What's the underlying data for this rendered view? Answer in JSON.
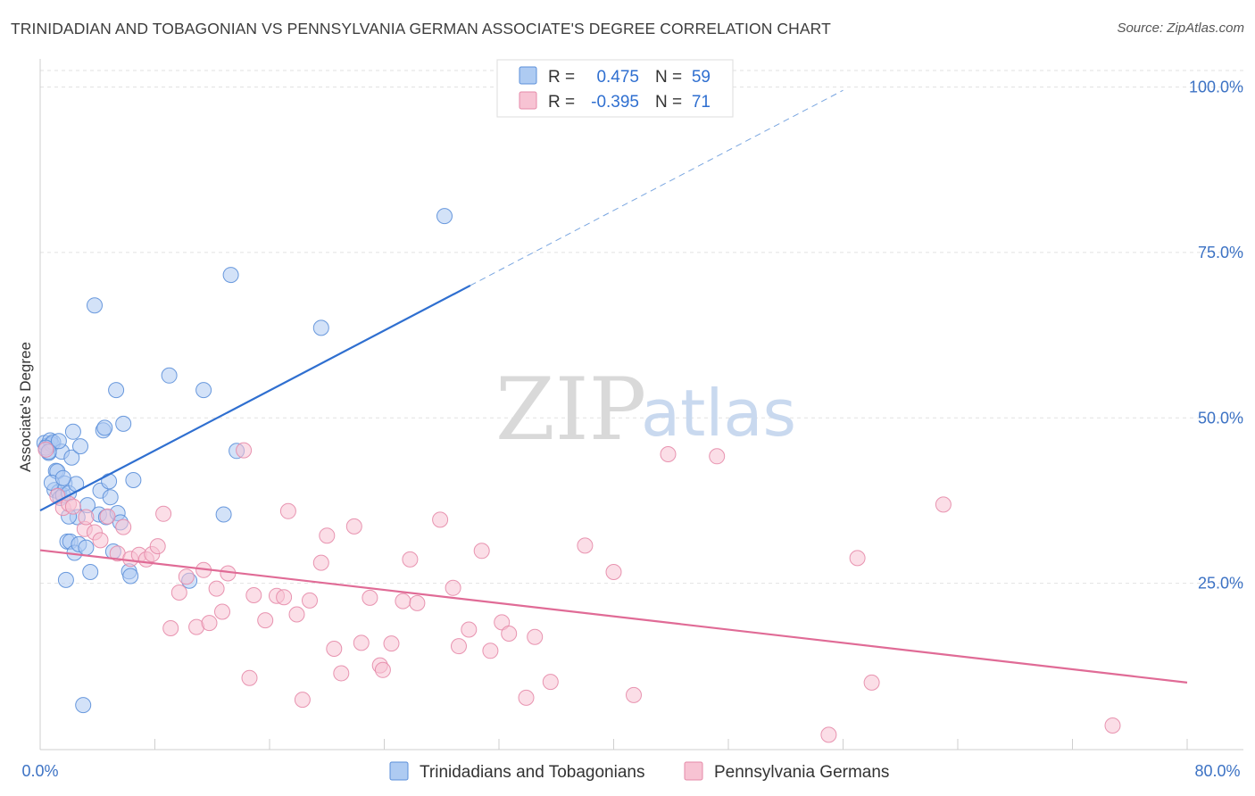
{
  "header": {
    "title": "TRINIDADIAN AND TOBAGONIAN VS PENNSYLVANIA GERMAN ASSOCIATE'S DEGREE CORRELATION CHART",
    "source": "Source: ZipAtlas.com"
  },
  "watermark": {
    "zip": "ZIP",
    "atlas": "atlas"
  },
  "legend": {
    "r_label": "R =",
    "n_label": "N =",
    "rows": [
      {
        "r": "0.475",
        "n": "59",
        "color": "#aecbf2",
        "stroke": "#5b8fd9"
      },
      {
        "r": "-0.395",
        "n": "71",
        "color": "#f7c3d3",
        "stroke": "#e58aa8"
      }
    ]
  },
  "chart_data": {
    "type": "scatter",
    "title": "TRINIDADIAN AND TOBAGONIAN VS PENNSYLVANIA GERMAN ASSOCIATE'S DEGREE CORRELATION CHART",
    "xlabel": "",
    "ylabel": "Associate's Degree",
    "xlim": [
      0,
      80
    ],
    "ylim": [
      0,
      100
    ],
    "x_tick_labels": [
      "0.0%",
      "80.0%"
    ],
    "y_ticks": [
      25,
      50,
      75,
      100
    ],
    "y_tick_labels": [
      "25.0%",
      "50.0%",
      "75.0%",
      "100.0%"
    ],
    "grid": "horizontal dashed",
    "legend_position": "top-center",
    "series": [
      {
        "name": "Trinidadians and Tobagonians",
        "color": "#aecbf2",
        "stroke": "#5b8fd9",
        "trend_color": "#2f6fd0",
        "trend": {
          "x0": 0,
          "y0": 36,
          "x1": 30,
          "y1": 70,
          "dash_to_x": 56,
          "dash_to_y": 99.5
        },
        "points": [
          [
            0.3,
            46.2
          ],
          [
            0.5,
            45.8
          ],
          [
            0.6,
            44.7
          ],
          [
            0.7,
            46.6
          ],
          [
            0.8,
            46.0
          ],
          [
            0.9,
            46.3
          ],
          [
            1.0,
            39.1
          ],
          [
            1.1,
            42.0
          ],
          [
            1.2,
            41.9
          ],
          [
            1.3,
            38.8
          ],
          [
            1.4,
            37.9
          ],
          [
            1.5,
            44.9
          ],
          [
            1.6,
            38.3
          ],
          [
            1.7,
            40.1
          ],
          [
            1.8,
            25.5
          ],
          [
            1.9,
            31.3
          ],
          [
            2.0,
            38.6
          ],
          [
            2.1,
            31.3
          ],
          [
            2.2,
            44.0
          ],
          [
            2.3,
            47.9
          ],
          [
            2.4,
            29.6
          ],
          [
            2.5,
            40.0
          ],
          [
            2.6,
            35.0
          ],
          [
            2.7,
            30.9
          ],
          [
            2.8,
            45.7
          ],
          [
            3.0,
            6.6
          ],
          [
            3.2,
            30.4
          ],
          [
            3.5,
            26.7
          ],
          [
            3.8,
            67.0
          ],
          [
            4.1,
            35.4
          ],
          [
            4.2,
            39.0
          ],
          [
            4.4,
            48.1
          ],
          [
            4.5,
            48.5
          ],
          [
            4.6,
            35.0
          ],
          [
            4.8,
            40.4
          ],
          [
            4.9,
            38.0
          ],
          [
            5.1,
            29.8
          ],
          [
            5.3,
            54.2
          ],
          [
            5.4,
            35.6
          ],
          [
            5.6,
            34.2
          ],
          [
            5.8,
            49.1
          ],
          [
            6.2,
            26.8
          ],
          [
            6.3,
            26.1
          ],
          [
            6.5,
            40.6
          ],
          [
            9.0,
            56.4
          ],
          [
            10.4,
            25.4
          ],
          [
            11.4,
            54.2
          ],
          [
            12.8,
            35.4
          ],
          [
            13.3,
            71.6
          ],
          [
            13.7,
            45.0
          ],
          [
            19.6,
            63.6
          ],
          [
            28.2,
            80.5
          ],
          [
            0.4,
            45.5
          ],
          [
            0.8,
            40.2
          ],
          [
            1.3,
            46.5
          ],
          [
            2.0,
            35.1
          ],
          [
            3.3,
            36.8
          ],
          [
            1.6,
            40.9
          ],
          [
            0.6,
            44.9
          ]
        ]
      },
      {
        "name": "Pennsylvania Germans",
        "color": "#f7c3d3",
        "stroke": "#e58aa8",
        "trend_color": "#e06b96",
        "trend": {
          "x0": 0,
          "y0": 30,
          "x1": 80,
          "y1": 10
        },
        "points": [
          [
            0.4,
            45.2
          ],
          [
            1.2,
            38.2
          ],
          [
            1.6,
            36.4
          ],
          [
            2.0,
            37.0
          ],
          [
            2.3,
            36.6
          ],
          [
            3.1,
            33.2
          ],
          [
            3.2,
            35.0
          ],
          [
            3.8,
            32.7
          ],
          [
            4.2,
            31.5
          ],
          [
            4.7,
            35.1
          ],
          [
            5.4,
            29.5
          ],
          [
            5.8,
            33.5
          ],
          [
            6.3,
            28.7
          ],
          [
            6.9,
            29.3
          ],
          [
            7.4,
            28.6
          ],
          [
            7.8,
            29.4
          ],
          [
            8.2,
            30.6
          ],
          [
            8.6,
            35.5
          ],
          [
            9.1,
            18.2
          ],
          [
            9.7,
            23.6
          ],
          [
            10.2,
            26.0
          ],
          [
            10.9,
            18.4
          ],
          [
            11.4,
            27.0
          ],
          [
            11.8,
            19.0
          ],
          [
            12.3,
            24.2
          ],
          [
            12.7,
            20.7
          ],
          [
            13.1,
            26.5
          ],
          [
            14.2,
            45.1
          ],
          [
            14.6,
            10.7
          ],
          [
            14.9,
            23.2
          ],
          [
            15.7,
            19.4
          ],
          [
            16.5,
            23.1
          ],
          [
            17.0,
            22.9
          ],
          [
            17.3,
            35.9
          ],
          [
            17.9,
            20.3
          ],
          [
            18.3,
            7.4
          ],
          [
            18.8,
            22.4
          ],
          [
            19.6,
            28.1
          ],
          [
            20.0,
            32.2
          ],
          [
            20.5,
            15.1
          ],
          [
            21.0,
            11.4
          ],
          [
            21.9,
            33.6
          ],
          [
            22.4,
            16.0
          ],
          [
            23.0,
            22.8
          ],
          [
            23.7,
            12.6
          ],
          [
            23.9,
            11.9
          ],
          [
            24.5,
            15.9
          ],
          [
            25.3,
            22.3
          ],
          [
            25.8,
            28.6
          ],
          [
            26.3,
            22.0
          ],
          [
            27.9,
            34.6
          ],
          [
            28.8,
            24.3
          ],
          [
            29.2,
            15.5
          ],
          [
            29.9,
            18.0
          ],
          [
            30.8,
            29.9
          ],
          [
            31.4,
            14.8
          ],
          [
            32.2,
            19.1
          ],
          [
            32.7,
            17.4
          ],
          [
            33.9,
            7.7
          ],
          [
            34.5,
            16.9
          ],
          [
            35.6,
            10.1
          ],
          [
            38.0,
            30.7
          ],
          [
            40.0,
            26.7
          ],
          [
            41.4,
            8.1
          ],
          [
            43.8,
            44.5
          ],
          [
            47.2,
            44.2
          ],
          [
            55.0,
            2.1
          ],
          [
            57.0,
            28.8
          ],
          [
            58.0,
            10.0
          ],
          [
            63.0,
            36.9
          ],
          [
            74.8,
            3.5
          ]
        ]
      }
    ]
  }
}
